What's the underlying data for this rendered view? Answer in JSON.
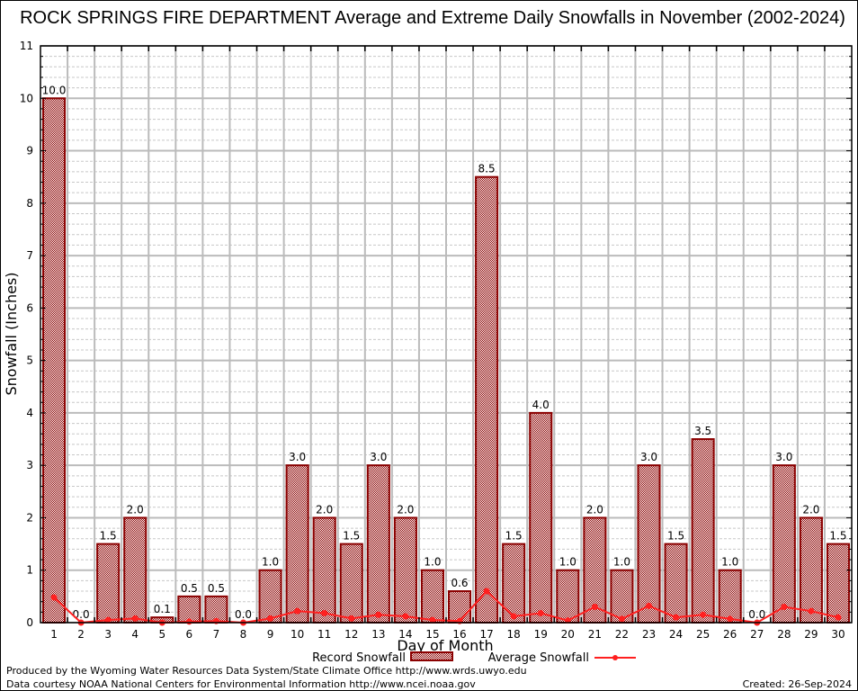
{
  "chart_data": {
    "type": "bar",
    "title": "ROCK SPRINGS FIRE DEPARTMENT Average and Extreme Daily Snowfalls in November (2002-2024)",
    "xlabel": "Day of Month",
    "ylabel": "Snowfall (Inches)",
    "ylim": [
      0,
      11
    ],
    "yticks": [
      "0",
      "1",
      "2",
      "3",
      "4",
      "5",
      "6",
      "7",
      "8",
      "9",
      "10",
      "11"
    ],
    "grid": true,
    "categories": [
      "1",
      "2",
      "3",
      "4",
      "5",
      "6",
      "7",
      "8",
      "9",
      "10",
      "11",
      "12",
      "13",
      "14",
      "15",
      "16",
      "17",
      "18",
      "19",
      "20",
      "21",
      "22",
      "23",
      "24",
      "25",
      "26",
      "27",
      "28",
      "29",
      "30"
    ],
    "series": [
      {
        "name": "Record Snowfall",
        "type": "bar",
        "color": "#8b0000",
        "values": [
          10.0,
          0.0,
          1.5,
          2.0,
          0.1,
          0.5,
          0.5,
          0.0,
          1.0,
          3.0,
          2.0,
          1.5,
          3.0,
          2.0,
          1.0,
          0.6,
          8.5,
          1.5,
          4.0,
          1.0,
          2.0,
          1.0,
          3.0,
          1.5,
          3.5,
          1.0,
          0.0,
          3.0,
          2.0,
          1.5
        ],
        "labels": [
          "10.0",
          "0.0",
          "1.5",
          "2.0",
          "0.1",
          "0.5",
          "0.5",
          "0.0",
          "1.0",
          "3.0",
          "2.0",
          "1.5",
          "3.0",
          "2.0",
          "1.0",
          "0.6",
          "8.5",
          "1.5",
          "4.0",
          "1.0",
          "2.0",
          "1.0",
          "3.0",
          "1.5",
          "3.5",
          "1.0",
          "0.0",
          "3.0",
          "2.0",
          "1.5"
        ]
      },
      {
        "name": "Average Snowfall",
        "type": "line",
        "color": "#ff2020",
        "values": [
          0.48,
          0.0,
          0.05,
          0.08,
          0.0,
          0.02,
          0.03,
          0.0,
          0.08,
          0.22,
          0.18,
          0.08,
          0.15,
          0.12,
          0.05,
          0.03,
          0.6,
          0.12,
          0.18,
          0.04,
          0.3,
          0.07,
          0.32,
          0.1,
          0.15,
          0.07,
          0.0,
          0.3,
          0.22,
          0.1
        ]
      }
    ],
    "legend": {
      "placement": "bottom-center",
      "entries": [
        "Record Snowfall",
        "Average Snowfall"
      ]
    }
  },
  "footer": {
    "produced_by": "Produced by the Wyoming Water Resources Data System/State Climate Office http://www.wrds.uwyo.edu",
    "data_courtesy": "Data courtesy NOAA National Centers for Environmental Information http://www.ncei.noaa.gov",
    "created": "Created: 26-Sep-2024"
  }
}
